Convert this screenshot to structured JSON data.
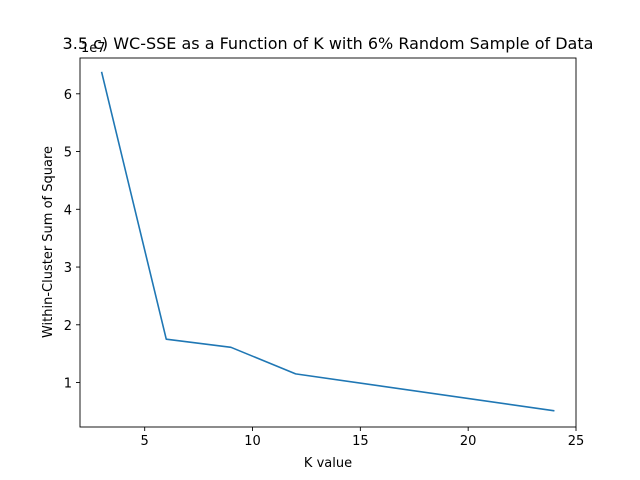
{
  "chart_data": {
    "type": "line",
    "title": "3.5 c) WC-SSE as a Function of K with 6% Random Sample of Data",
    "xlabel": "K value",
    "ylabel": "Within-Cluster Sum of Square",
    "y_offset_label": "1e7",
    "xlim": [
      2.0,
      25.0
    ],
    "ylim": [
      0.23,
      6.62
    ],
    "x_ticks": [
      5,
      10,
      15,
      20,
      25
    ],
    "y_ticks": [
      1,
      2,
      3,
      4,
      5,
      6
    ],
    "grid": false,
    "series": [
      {
        "color": "#1f77b4",
        "x": [
          3,
          6,
          9,
          12,
          24
        ],
        "y": [
          6.38,
          1.75,
          1.61,
          1.15,
          0.51
        ]
      }
    ]
  }
}
